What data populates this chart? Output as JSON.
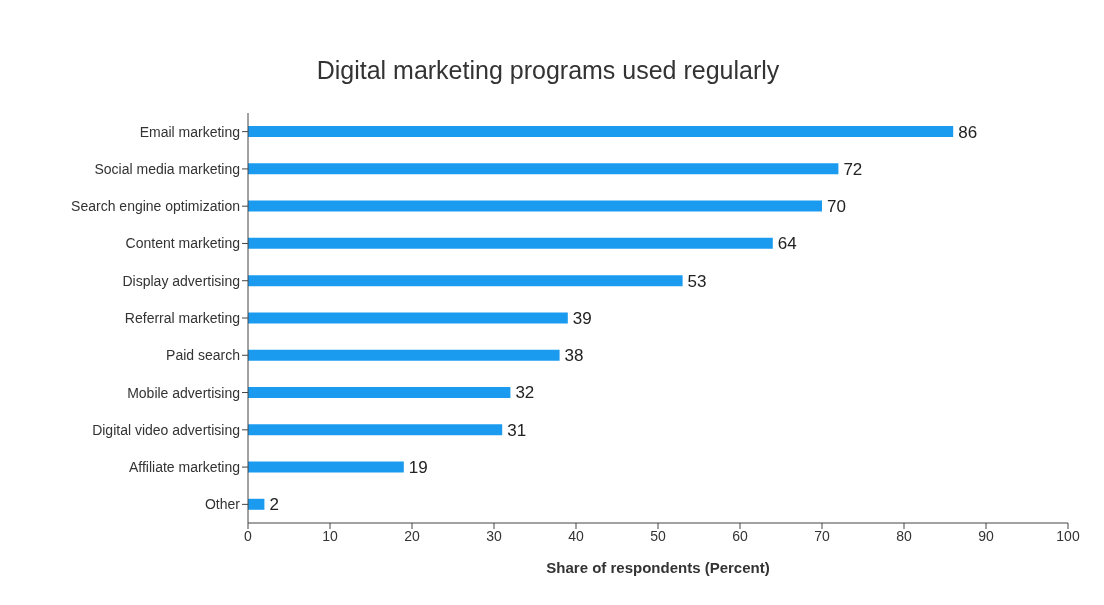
{
  "chart_data": {
    "type": "bar",
    "orientation": "horizontal",
    "title": "Digital marketing programs used regularly",
    "xlabel": "Share of respondents (Percent)",
    "categories": [
      "Email marketing",
      "Social media marketing",
      "Search engine optimization",
      "Content marketing",
      "Display advertising",
      "Referral marketing",
      "Paid search",
      "Mobile advertising",
      "Digital video advertising",
      "Affiliate marketing",
      "Other"
    ],
    "values": [
      86,
      72,
      70,
      64,
      53,
      39,
      38,
      32,
      31,
      19,
      2
    ],
    "color": "#1b9bf0",
    "xlim": [
      0,
      100
    ],
    "xticks": [
      0,
      10,
      20,
      30,
      40,
      50,
      60,
      70,
      80,
      90,
      100
    ],
    "data_labels": true
  }
}
